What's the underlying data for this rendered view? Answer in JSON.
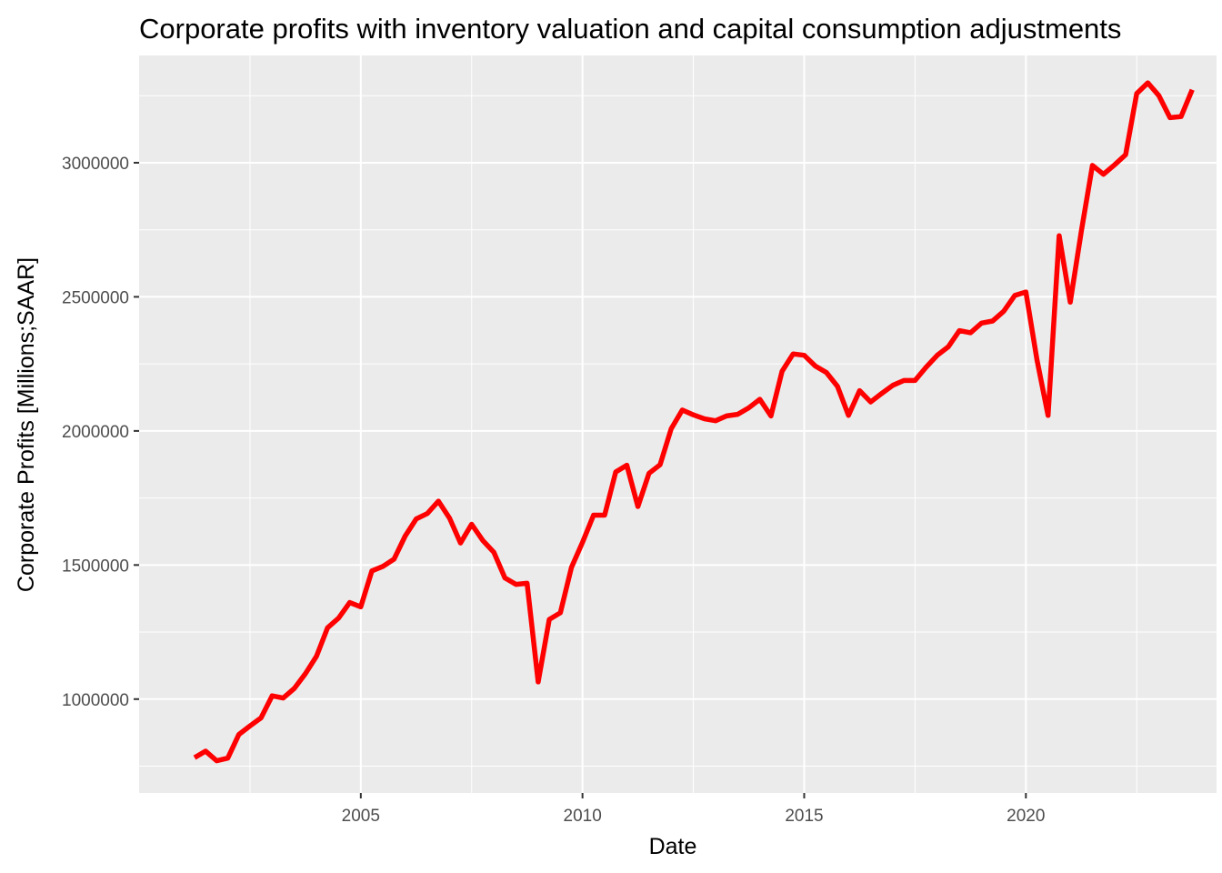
{
  "chart_data": {
    "type": "line",
    "title": "Corporate profits with inventory valuation and capital consumption adjustments",
    "xlabel": "Date",
    "ylabel": "Corporate Profits [Millions;SAAR]",
    "x_ticks": [
      "2005",
      "2010",
      "2015",
      "2020"
    ],
    "y_ticks": [
      "1000000",
      "1500000",
      "2000000",
      "2500000",
      "3000000"
    ],
    "xlim": [
      2000.0,
      2024.3
    ],
    "ylim": [
      650000,
      3400000
    ],
    "grid": true,
    "legend": "none",
    "line_color": "#ff0000",
    "panel_color": "#ebebeb",
    "grid_color": "#ffffff",
    "series": [
      {
        "x": [
          2001.25,
          2001.5,
          2001.75,
          2002.0,
          2002.25,
          2002.5,
          2002.75,
          2003.0,
          2003.25,
          2003.5,
          2003.75,
          2004.0,
          2004.25,
          2004.5,
          2004.75,
          2005.0,
          2005.25,
          2005.5,
          2005.75,
          2006.0,
          2006.25,
          2006.5,
          2006.75,
          2007.0,
          2007.25,
          2007.5,
          2007.75,
          2008.0,
          2008.25,
          2008.5,
          2008.75,
          2009.0,
          2009.25,
          2009.5,
          2009.75,
          2010.0,
          2010.25,
          2010.5,
          2010.75,
          2011.0,
          2011.25,
          2011.5,
          2011.75,
          2012.0,
          2012.25,
          2012.5,
          2012.75,
          2013.0,
          2013.25,
          2013.5,
          2013.75,
          2014.0,
          2014.25,
          2014.5,
          2014.75,
          2015.0,
          2015.25,
          2015.5,
          2015.75,
          2016.0,
          2016.25,
          2016.5,
          2016.75,
          2017.0,
          2017.25,
          2017.5,
          2017.75,
          2018.0,
          2018.25,
          2018.5,
          2018.75,
          2019.0,
          2019.25,
          2019.5,
          2019.75,
          2020.0,
          2020.25,
          2020.5,
          2020.75,
          2021.0,
          2021.25,
          2021.5,
          2021.75,
          2022.0,
          2022.25,
          2022.5,
          2022.75,
          2023.0,
          2023.25,
          2023.5,
          2023.75
        ],
        "values": [
          782000,
          806000,
          770000,
          780000,
          868000,
          900000,
          930000,
          1012000,
          1004000,
          1040000,
          1095000,
          1160000,
          1266000,
          1302000,
          1360000,
          1344000,
          1478000,
          1495000,
          1522000,
          1608000,
          1672000,
          1692000,
          1738000,
          1675000,
          1582000,
          1652000,
          1592000,
          1548000,
          1452000,
          1428000,
          1432000,
          1064000,
          1297000,
          1322000,
          1491000,
          1585000,
          1686000,
          1686000,
          1847000,
          1872000,
          1718000,
          1842000,
          1874000,
          2008000,
          2078000,
          2060000,
          2045000,
          2038000,
          2056000,
          2062000,
          2086000,
          2118000,
          2056000,
          2222000,
          2287000,
          2282000,
          2242000,
          2218000,
          2166000,
          2058000,
          2150000,
          2108000,
          2140000,
          2170000,
          2188000,
          2188000,
          2238000,
          2282000,
          2314000,
          2374000,
          2366000,
          2402000,
          2410000,
          2446000,
          2505000,
          2518000,
          2265000,
          2058000,
          2728000,
          2480000,
          2745000,
          2990000,
          2957000,
          2992000,
          3030000,
          3258000,
          3298000,
          3250000,
          3168000,
          3172000,
          3272000
        ]
      }
    ]
  }
}
